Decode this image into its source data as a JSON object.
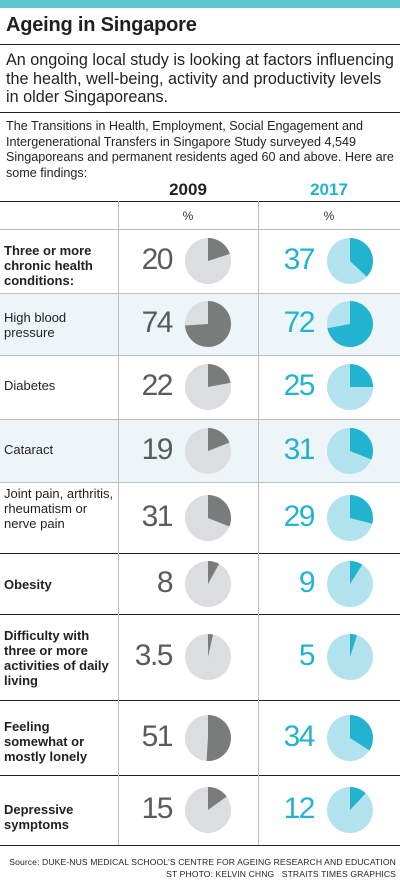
{
  "header": {
    "title": "Ageing in Singapore",
    "lead": "An ongoing local study is looking at factors influencing the health, well-being, activity and productivity levels in older Singaporeans.",
    "description": "The Transitions in Health, Employment, Social Engagement and Intergenerational Transfers in Singapore Study surveyed 4,549 Singaporeans and permanent residents aged 60 and above. Here are some findings:"
  },
  "columns": {
    "year1": "2009",
    "year2": "2017",
    "unit1": "%",
    "unit2": "%"
  },
  "colors": {
    "accent_2017": "#22b3d0",
    "accent_2017_light": "#b3e2ef",
    "fill_2009": "#7a7b7b",
    "fill_2009_light": "#dcddde"
  },
  "chart_data": {
    "type": "pie",
    "categories": [
      "Three or more chronic health conditions:",
      "High blood pressure",
      "Diabetes",
      "Cataract",
      "Joint pain, arthritis, rheumatism or nerve pain",
      "Obesity",
      "Difficulty with three or more activities of daily living",
      "Feeling somewhat or mostly lonely",
      "Depressive symptoms"
    ],
    "series": [
      {
        "name": "2009",
        "values": [
          "20",
          "74",
          "22",
          "19",
          "31",
          "8",
          "3.5",
          "51",
          "15"
        ]
      },
      {
        "name": "2017",
        "values": [
          "37",
          "72",
          "25",
          "31",
          "29",
          "9",
          "5",
          "34",
          "12"
        ]
      }
    ],
    "unit": "%"
  },
  "rows": [
    {
      "label": "Three or more chronic health conditions:",
      "bold": true
    },
    {
      "label": "High blood pressure",
      "bold": false
    },
    {
      "label": "Diabetes",
      "bold": false
    },
    {
      "label": "Cataract",
      "bold": false
    },
    {
      "label": "Joint pain, arthritis, rheumatism or nerve pain",
      "bold": false
    },
    {
      "label": "Obesity",
      "bold": true
    },
    {
      "label": "Difficulty with three or more activities of daily living",
      "bold": true
    },
    {
      "label": "Feeling somewhat or mostly lonely",
      "bold": true
    },
    {
      "label": "Depressive symptoms",
      "bold": true
    }
  ],
  "footer": {
    "source": "Source: DUKE-NUS MEDICAL SCHOOL'S CENTRE FOR AGEING RESEARCH AND EDUCATION",
    "credit": "ST PHOTO: KELVIN CHNG   STRAITS TIMES GRAPHICS"
  }
}
